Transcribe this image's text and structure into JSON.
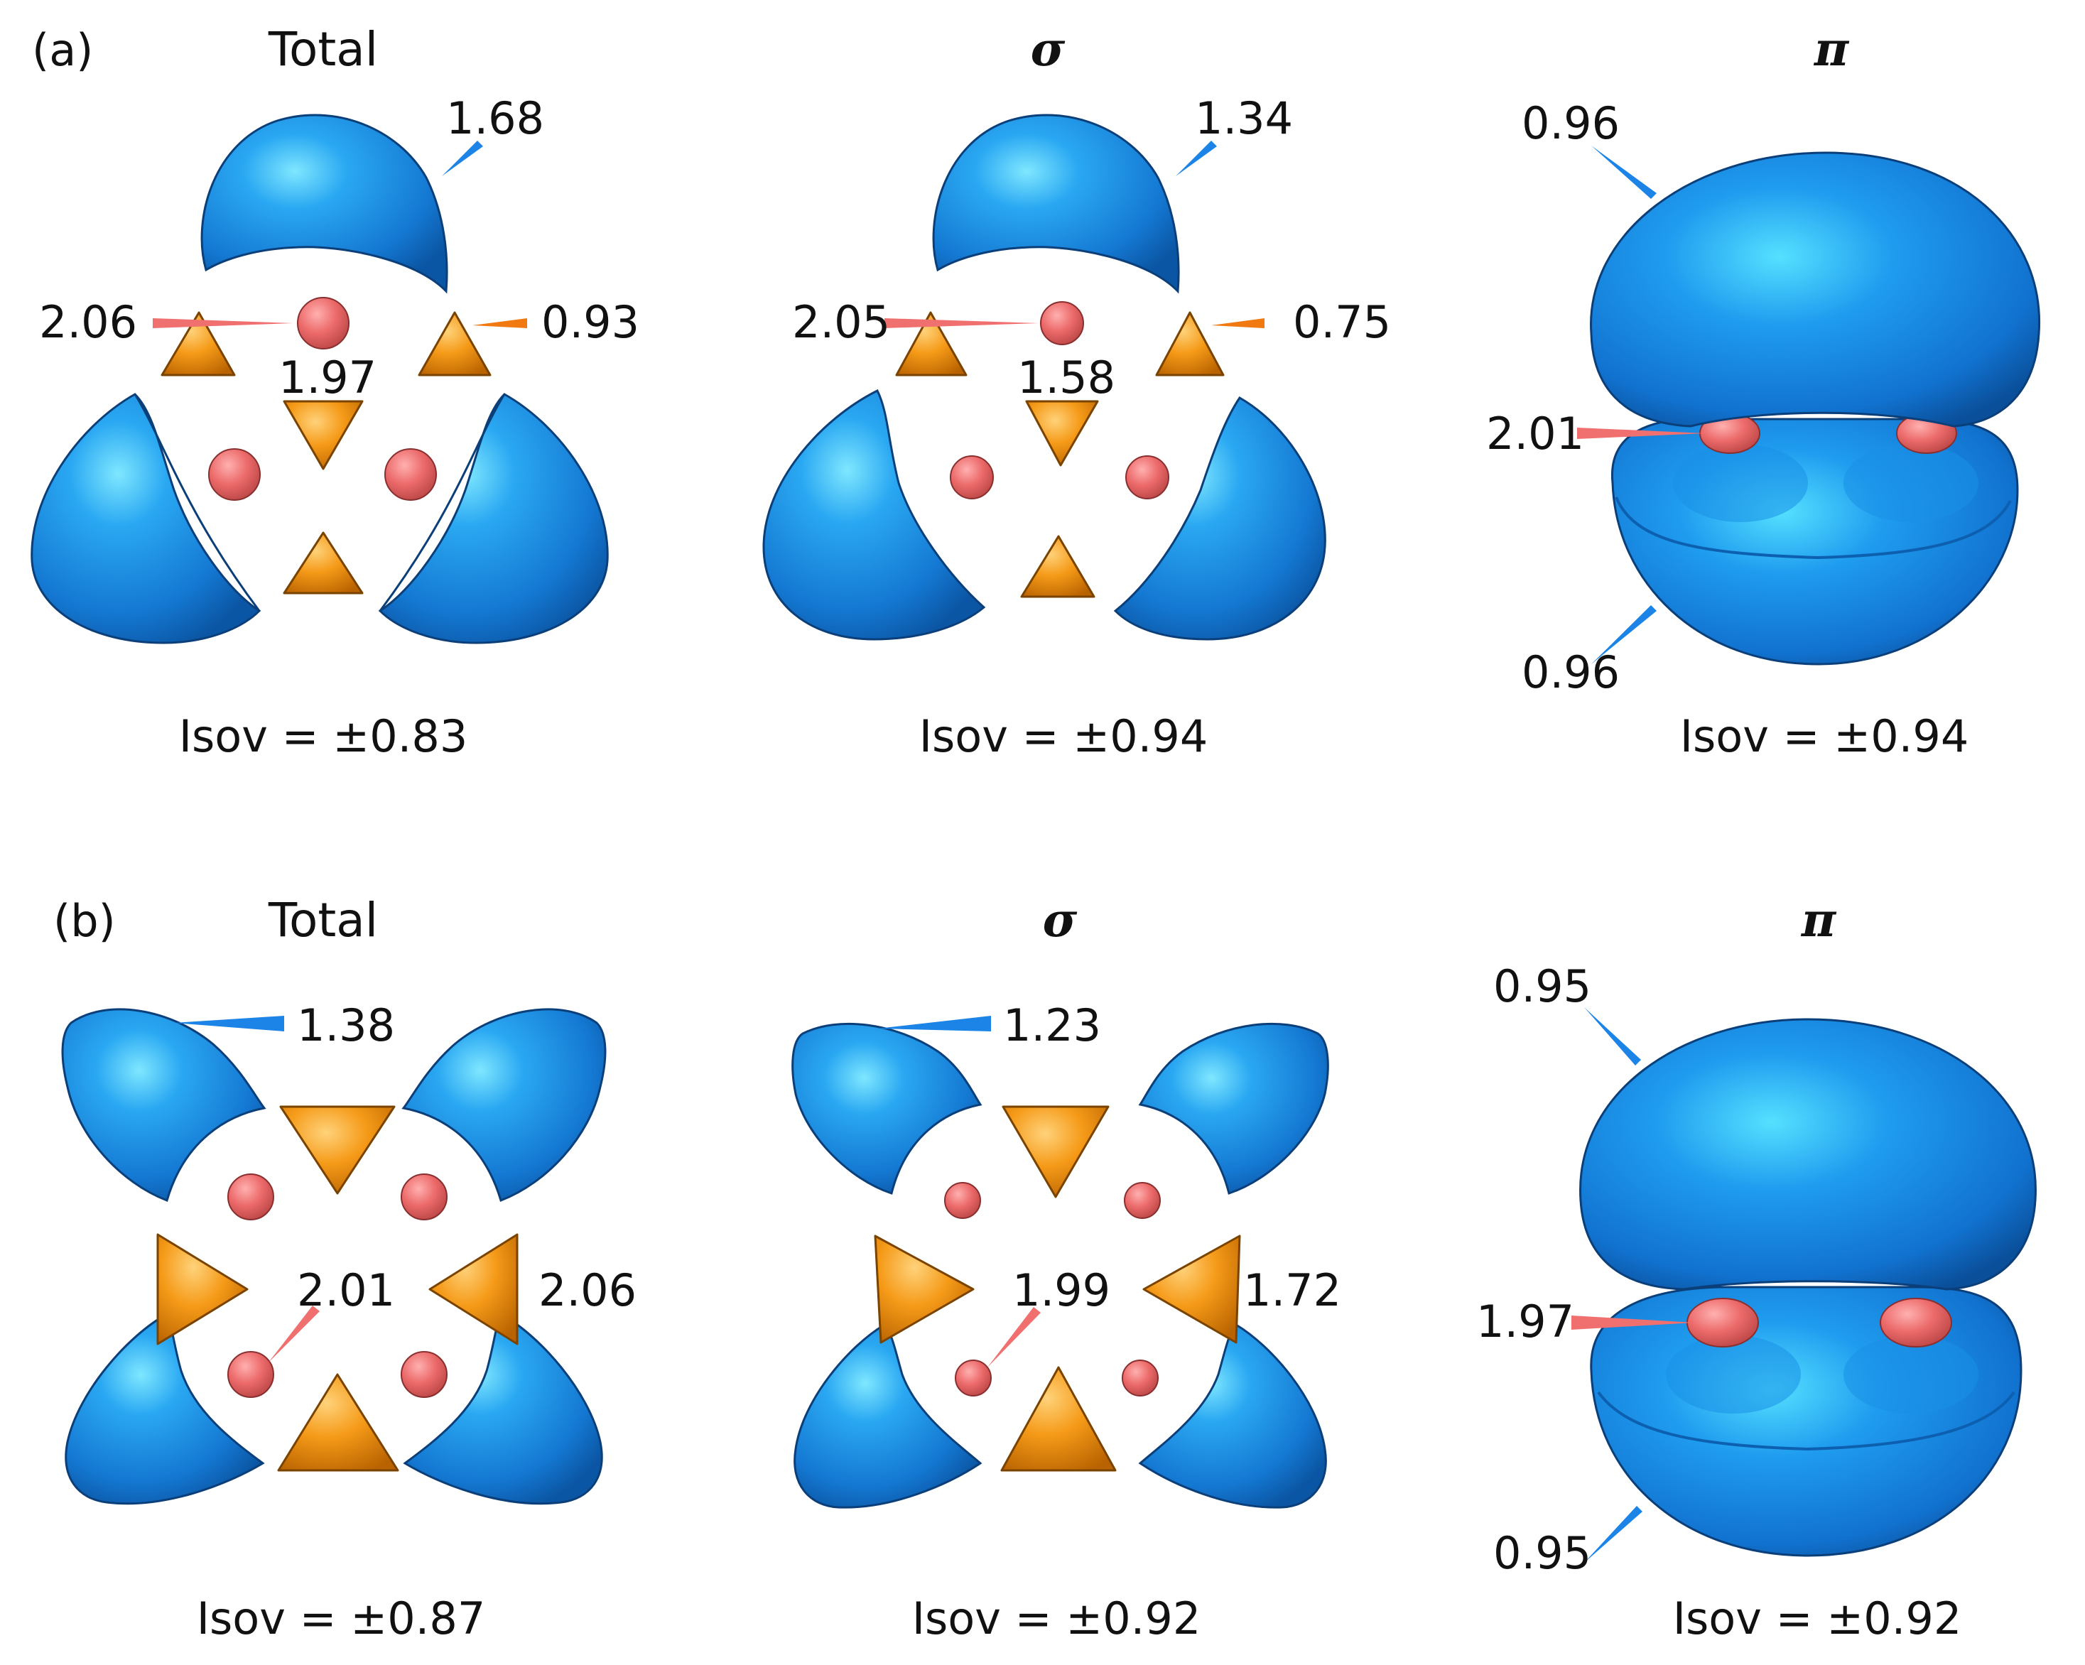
{
  "colors": {
    "blue_basin": "#1f86e0",
    "blue_highlight": "#7fe7ff",
    "blue_edge": "#0b3f7a",
    "orange_basin": "#f29514",
    "orange_edge": "#7a4300",
    "red_atom": "#ef6f6f",
    "red_edge": "#8a2f2f",
    "pointer_blue": "#1b84e6",
    "pointer_orange": "#f07a10",
    "pointer_red": "#f07070"
  },
  "panels": {
    "a": {
      "label": "(a)",
      "total": {
        "title": "Total",
        "values": [
          "1.68",
          "2.06",
          "0.93",
          "1.97"
        ],
        "isov": "Isov = ±0.83"
      },
      "sigma": {
        "title": "σ",
        "values": [
          "1.34",
          "2.05",
          "0.75",
          "1.58"
        ],
        "isov": "Isov = ±0.94"
      },
      "pi": {
        "title": "π",
        "values": [
          "0.96",
          "2.01",
          "0.96"
        ],
        "isov": "Isov = ±0.94"
      }
    },
    "b": {
      "label": "(b)",
      "total": {
        "title": "Total",
        "values": [
          "1.38",
          "2.01",
          "2.06"
        ],
        "isov": "Isov = ±0.87"
      },
      "sigma": {
        "title": "σ",
        "values": [
          "1.23",
          "1.99",
          "1.72"
        ],
        "isov": "Isov = ±0.92"
      },
      "pi": {
        "title": "π",
        "values": [
          "0.95",
          "1.97",
          "0.95"
        ],
        "isov": "Isov = ±0.92"
      }
    }
  }
}
